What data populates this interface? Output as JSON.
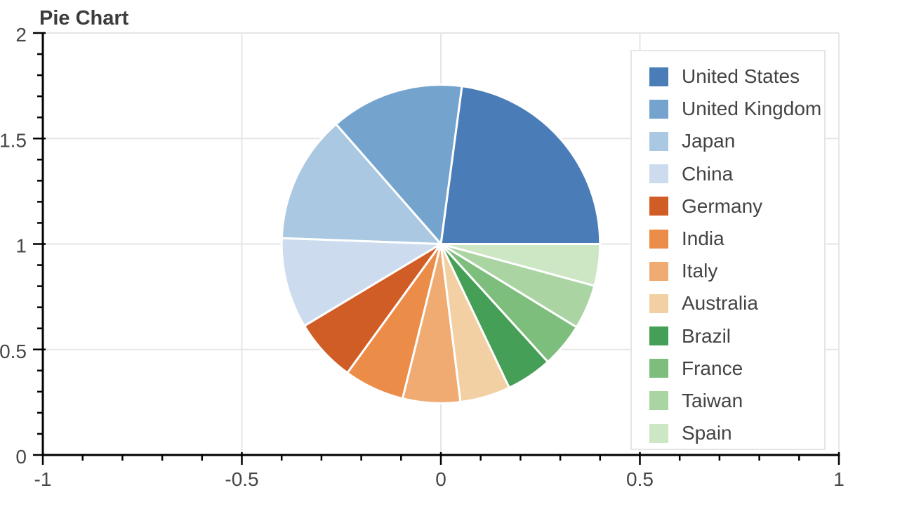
{
  "chart_data": {
    "type": "pie",
    "title": "Pie Chart",
    "categories": [
      "United States",
      "United Kingdom",
      "Japan",
      "China",
      "Germany",
      "India",
      "Italy",
      "Australia",
      "Brazil",
      "France",
      "Taiwan",
      "Spain"
    ],
    "values": [
      157,
      93,
      89,
      63,
      44,
      42,
      40,
      35,
      32,
      31,
      31,
      29
    ],
    "colors": [
      "#4a7db7",
      "#74a4ce",
      "#aac8e1",
      "#ccdcee",
      "#d15d26",
      "#ec8c49",
      "#efab72",
      "#f3cfa4",
      "#459f56",
      "#7dbe7c",
      "#aad4a2",
      "#cde7c5"
    ],
    "legend": {
      "position": "top-right",
      "labels": [
        "United States",
        "United Kingdom",
        "Japan",
        "China",
        "Germany",
        "India",
        "Italy",
        "Australia",
        "Brazil",
        "France",
        "Taiwan",
        "Spain"
      ]
    },
    "pie": {
      "center_x": 0,
      "center_y": 1,
      "radius": 0.4,
      "start_angle_deg": 0,
      "direction": "counterclockwise",
      "slice_outline_color": "#ffffff",
      "slice_outline_width": 3
    },
    "x_axis": {
      "range": [
        -1,
        1
      ],
      "major_ticks": [
        -1,
        -0.5,
        0,
        0.5,
        1
      ],
      "tick_labels": [
        "-1",
        "-0.5",
        "0",
        "0.5",
        "1"
      ],
      "minor_tick_interval": 0.1
    },
    "y_axis": {
      "range": [
        0,
        2
      ],
      "major_ticks": [
        0,
        0.5,
        1,
        1.5,
        2
      ],
      "tick_labels": [
        "0",
        "0.5",
        "1",
        "1.5",
        "2"
      ],
      "minor_tick_interval": 0.1
    },
    "grid": {
      "visible": true
    }
  },
  "styles": {
    "background": "#ffffff",
    "title_color": "#3c3c3c",
    "axis_line_color": "#000000",
    "tick_color": "#000000",
    "tick_label_color": "#474747",
    "grid_line_color": "#e6e6e6",
    "legend_border_color": "#e5e5e5",
    "legend_background": "#ffffff",
    "legend_label_color": "#444444"
  }
}
